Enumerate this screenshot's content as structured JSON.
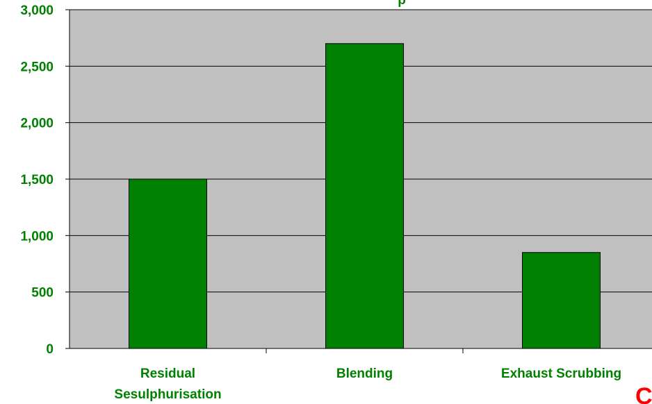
{
  "chart_data": {
    "type": "bar",
    "title": "",
    "categories": [
      "Residual\nSesulphurisation",
      "Blending",
      "Exhaust Scrubbing"
    ],
    "values": [
      1500,
      2700,
      850
    ],
    "ylim": [
      0,
      3000
    ],
    "yticks": [
      0,
      500,
      1000,
      1500,
      2000,
      2500,
      3000
    ],
    "ytick_labels": [
      "0",
      "500",
      "1,000",
      "1,500",
      "2,000",
      "2,500",
      "3,000"
    ],
    "xlabel": "",
    "ylabel": "",
    "grid": true,
    "legend": false
  },
  "colors": {
    "bar_fill": "#008000",
    "plot_background": "#c0c0c0",
    "label_text": "#008000",
    "corner_text": "#ff0000"
  },
  "clipped_title_fragment": "p",
  "corner_fragment": "C"
}
